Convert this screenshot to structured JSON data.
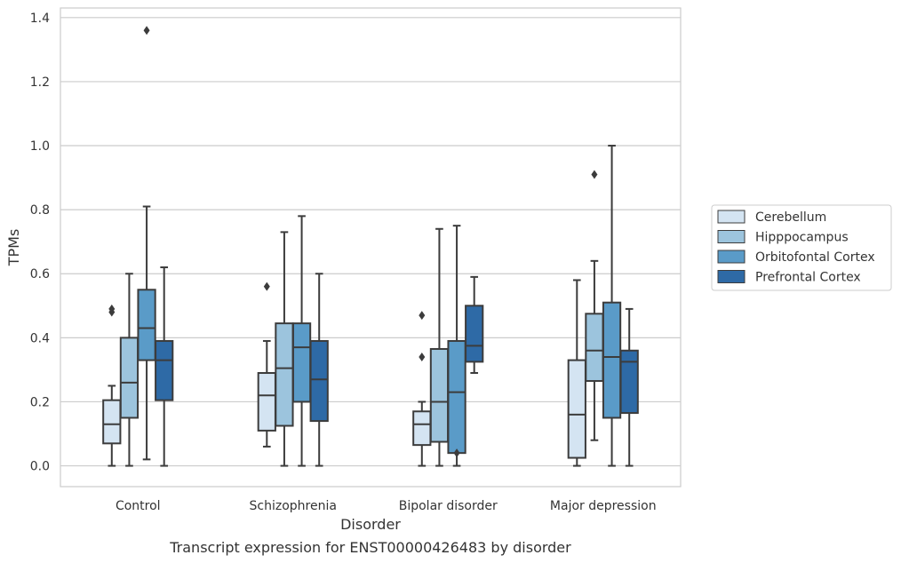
{
  "chart_data": {
    "type": "box",
    "title": "",
    "caption": "Transcript expression for ENST00000426483 by disorder",
    "xlabel": "Disorder",
    "ylabel": "TPMs",
    "ylim": [
      -0.065,
      1.43
    ],
    "yticks": [
      0.0,
      0.2,
      0.4,
      0.6,
      0.8,
      1.0,
      1.2,
      1.4
    ],
    "ytick_labels": [
      "0.0",
      "0.2",
      "0.4",
      "0.6",
      "0.8",
      "1.0",
      "1.2",
      "1.4"
    ],
    "grid": true,
    "legend_position": "right",
    "categories": [
      "Control",
      "Schizophrenia",
      "Bipolar disorder",
      "Major depression"
    ],
    "series": [
      {
        "name": "Cerebellum",
        "color": "#d4e4f2",
        "boxes": [
          {
            "whislo": 0.0,
            "q1": 0.07,
            "med": 0.13,
            "q3": 0.205,
            "whishi": 0.25,
            "fliers": [
              0.48,
              0.49
            ]
          },
          {
            "whislo": 0.06,
            "q1": 0.11,
            "med": 0.22,
            "q3": 0.29,
            "whishi": 0.39,
            "fliers": [
              0.56
            ]
          },
          {
            "whislo": 0.0,
            "q1": 0.065,
            "med": 0.13,
            "q3": 0.17,
            "whishi": 0.2,
            "fliers": [
              0.34,
              0.47
            ]
          },
          {
            "whislo": 0.0,
            "q1": 0.025,
            "med": 0.16,
            "q3": 0.33,
            "whishi": 0.58,
            "fliers": []
          }
        ]
      },
      {
        "name": "Hipppocampus",
        "color": "#9cc4dd",
        "boxes": [
          {
            "whislo": 0.0,
            "q1": 0.15,
            "med": 0.26,
            "q3": 0.4,
            "whishi": 0.6,
            "fliers": []
          },
          {
            "whislo": 0.0,
            "q1": 0.125,
            "med": 0.305,
            "q3": 0.445,
            "whishi": 0.73,
            "fliers": []
          },
          {
            "whislo": 0.0,
            "q1": 0.075,
            "med": 0.2,
            "q3": 0.365,
            "whishi": 0.74,
            "fliers": []
          },
          {
            "whislo": 0.08,
            "q1": 0.265,
            "med": 0.36,
            "q3": 0.475,
            "whishi": 0.64,
            "fliers": [
              0.91
            ]
          }
        ]
      },
      {
        "name": "Orbitofontal Cortex",
        "color": "#5a9bc8",
        "boxes": [
          {
            "whislo": 0.02,
            "q1": 0.33,
            "med": 0.43,
            "q3": 0.55,
            "whishi": 0.81,
            "fliers": [
              1.36
            ]
          },
          {
            "whislo": 0.0,
            "q1": 0.2,
            "med": 0.37,
            "q3": 0.445,
            "whishi": 0.78,
            "fliers": []
          },
          {
            "whislo": 0.0,
            "q1": 0.04,
            "med": 0.23,
            "q3": 0.39,
            "whishi": 0.75,
            "fliers": [
              0.04
            ]
          },
          {
            "whislo": 0.0,
            "q1": 0.15,
            "med": 0.34,
            "q3": 0.51,
            "whishi": 1.0,
            "fliers": []
          }
        ]
      },
      {
        "name": "Prefrontal Cortex",
        "color": "#2e6aa6",
        "boxes": [
          {
            "whislo": 0.0,
            "q1": 0.205,
            "med": 0.33,
            "q3": 0.39,
            "whishi": 0.62,
            "fliers": []
          },
          {
            "whislo": 0.0,
            "q1": 0.14,
            "med": 0.27,
            "q3": 0.39,
            "whishi": 0.6,
            "fliers": []
          },
          {
            "whislo": 0.29,
            "q1": 0.325,
            "med": 0.375,
            "q3": 0.5,
            "whishi": 0.59,
            "fliers": []
          },
          {
            "whislo": 0.0,
            "q1": 0.165,
            "med": 0.325,
            "q3": 0.36,
            "whishi": 0.49,
            "fliers": []
          }
        ]
      }
    ]
  }
}
